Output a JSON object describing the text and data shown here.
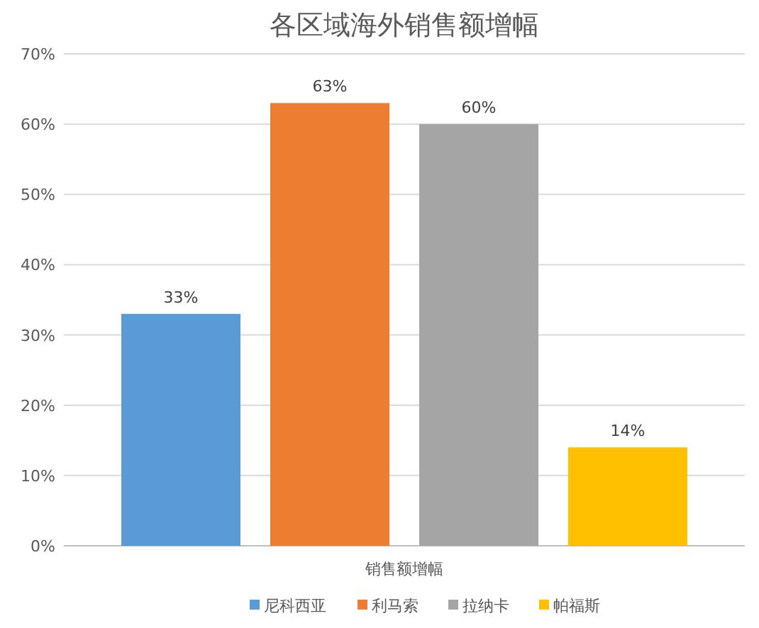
{
  "chart_data": {
    "type": "bar",
    "title": "各区域海外销售额增幅",
    "categories": [
      "销售额增幅"
    ],
    "series": [
      {
        "name": "尼科西亚",
        "color": "#5b9bd5",
        "values": [
          33
        ],
        "value_labels": [
          "33%"
        ]
      },
      {
        "name": "利马索",
        "color": "#ed7d31",
        "values": [
          63
        ],
        "value_labels": [
          "63%"
        ]
      },
      {
        "name": "拉纳卡",
        "color": "#a5a5a5",
        "values": [
          60
        ],
        "value_labels": [
          "60%"
        ]
      },
      {
        "name": "帕福斯",
        "color": "#ffc000",
        "values": [
          14
        ],
        "value_labels": [
          "14%"
        ]
      }
    ],
    "ylim": [
      0,
      70
    ],
    "yticks": [
      {
        "value": 0,
        "label": "0%"
      },
      {
        "value": 10,
        "label": "10%"
      },
      {
        "value": 20,
        "label": "20%"
      },
      {
        "value": 30,
        "label": "30%"
      },
      {
        "value": 40,
        "label": "40%"
      },
      {
        "value": 50,
        "label": "50%"
      },
      {
        "value": 60,
        "label": "60%"
      },
      {
        "value": 70,
        "label": "70%"
      }
    ],
    "grid": "y",
    "legend": "bottom"
  }
}
